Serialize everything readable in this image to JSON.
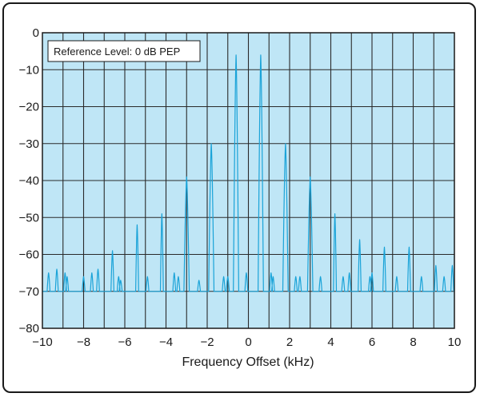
{
  "chart_data": {
    "type": "line",
    "title": "",
    "xlabel": "Frequency Offset (kHz)",
    "ylabel": "",
    "xlim": [
      -10,
      10
    ],
    "ylim": [
      -80,
      0
    ],
    "grid": true,
    "x_ticks": [
      -10,
      -8,
      -6,
      -4,
      -2,
      0,
      2,
      4,
      6,
      8,
      10
    ],
    "y_ticks": [
      0,
      -10,
      -20,
      -30,
      -40,
      -50,
      -60,
      -70,
      -80
    ],
    "x_tick_labels": [
      "−10",
      "−8",
      "−6",
      "−4",
      "−2",
      "0",
      "2",
      "4",
      "6",
      "8",
      "10"
    ],
    "y_tick_labels": [
      "0",
      "−10",
      "−20",
      "−30",
      "−40",
      "−50",
      "−60",
      "−70",
      "−80"
    ],
    "annotation": "Reference Level: 0 dB PEP",
    "noise_floor": -70,
    "peaks": [
      {
        "x": -9.7,
        "y": -65
      },
      {
        "x": -9.3,
        "y": -64
      },
      {
        "x": -8.9,
        "y": -65
      },
      {
        "x": -8.8,
        "y": -66
      },
      {
        "x": -8.0,
        "y": -66
      },
      {
        "x": -7.6,
        "y": -65
      },
      {
        "x": -7.3,
        "y": -64
      },
      {
        "x": -6.6,
        "y": -59
      },
      {
        "x": -6.3,
        "y": -66
      },
      {
        "x": -6.2,
        "y": -67
      },
      {
        "x": -5.4,
        "y": -52
      },
      {
        "x": -4.9,
        "y": -66
      },
      {
        "x": -4.2,
        "y": -49
      },
      {
        "x": -3.6,
        "y": -65
      },
      {
        "x": -3.4,
        "y": -66
      },
      {
        "x": -3.0,
        "y": -39
      },
      {
        "x": -2.4,
        "y": -67
      },
      {
        "x": -1.8,
        "y": -30
      },
      {
        "x": -1.2,
        "y": -66
      },
      {
        "x": -1.0,
        "y": -66
      },
      {
        "x": -0.6,
        "y": -6
      },
      {
        "x": -0.1,
        "y": -65
      },
      {
        "x": 0.6,
        "y": -6
      },
      {
        "x": 1.1,
        "y": -65
      },
      {
        "x": 1.2,
        "y": -66
      },
      {
        "x": 1.8,
        "y": -30
      },
      {
        "x": 2.3,
        "y": -66
      },
      {
        "x": 2.5,
        "y": -66
      },
      {
        "x": 3.0,
        "y": -39
      },
      {
        "x": 3.5,
        "y": -66
      },
      {
        "x": 4.2,
        "y": -49
      },
      {
        "x": 4.6,
        "y": -66
      },
      {
        "x": 4.9,
        "y": -65
      },
      {
        "x": 5.4,
        "y": -56
      },
      {
        "x": 5.9,
        "y": -66
      },
      {
        "x": 6.0,
        "y": -65
      },
      {
        "x": 6.6,
        "y": -58
      },
      {
        "x": 7.2,
        "y": -66
      },
      {
        "x": 7.8,
        "y": -58
      },
      {
        "x": 8.4,
        "y": -66
      },
      {
        "x": 9.1,
        "y": -63
      },
      {
        "x": 9.5,
        "y": -66
      },
      {
        "x": 9.9,
        "y": -63
      }
    ]
  }
}
